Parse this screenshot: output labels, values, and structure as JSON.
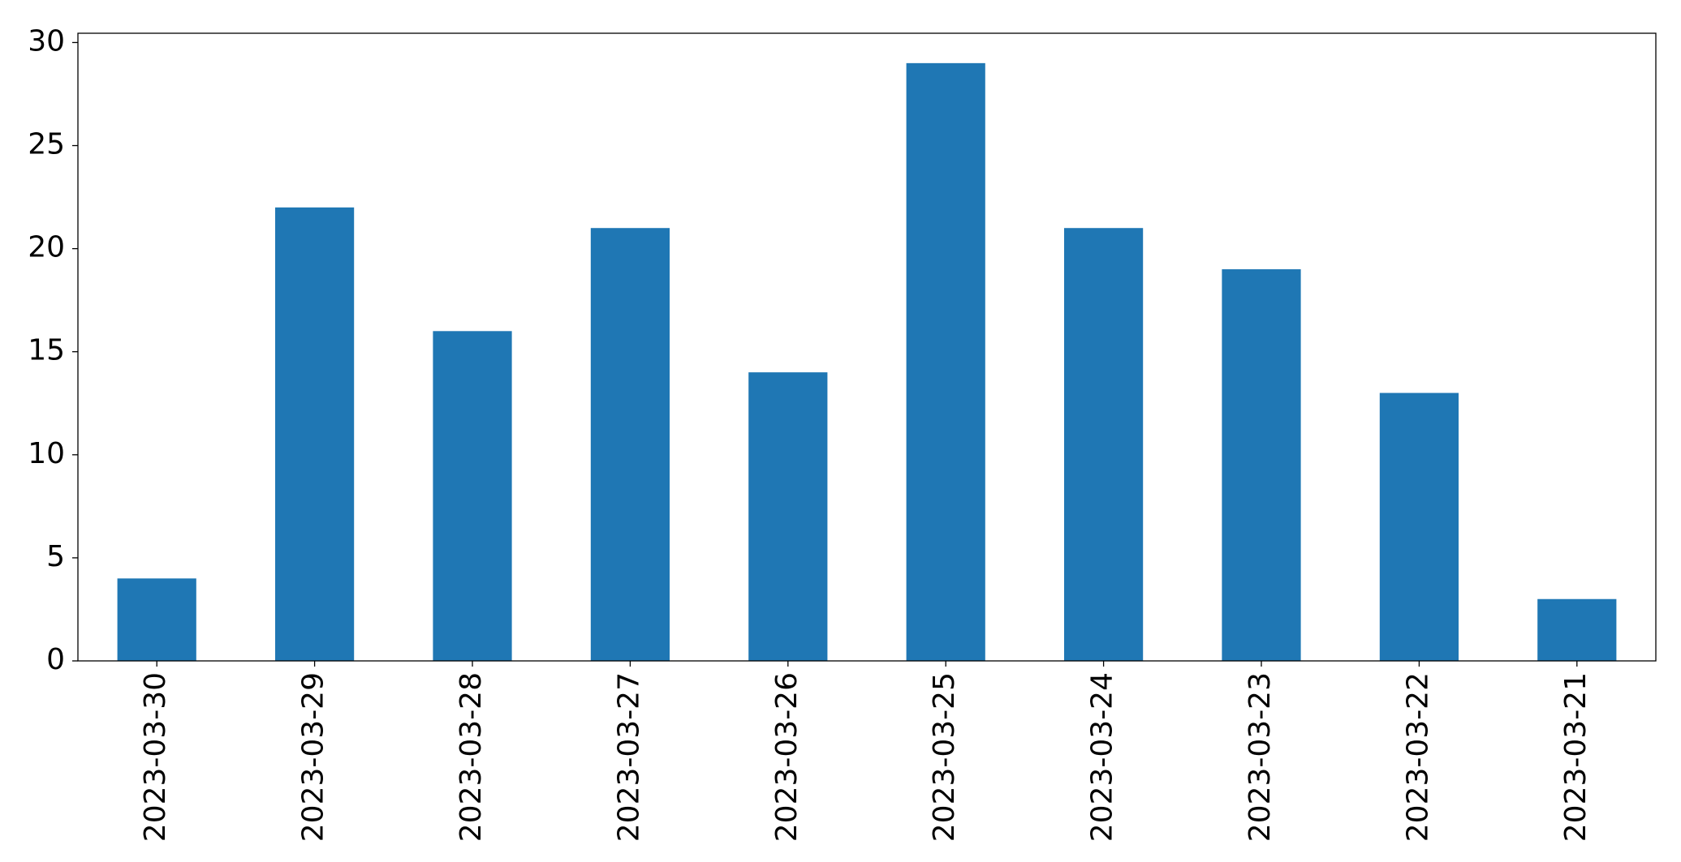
{
  "chart_data": {
    "type": "bar",
    "categories": [
      "2023-03-30",
      "2023-03-29",
      "2023-03-28",
      "2023-03-27",
      "2023-03-26",
      "2023-03-25",
      "2023-03-24",
      "2023-03-23",
      "2023-03-22",
      "2023-03-21"
    ],
    "values": [
      4,
      22,
      16,
      21,
      14,
      29,
      21,
      19,
      13,
      3
    ],
    "color": "#1f77b4",
    "ylim": [
      0,
      30.45
    ],
    "yticks": [
      0,
      5,
      10,
      15,
      20,
      25,
      30
    ],
    "grid": false
  }
}
